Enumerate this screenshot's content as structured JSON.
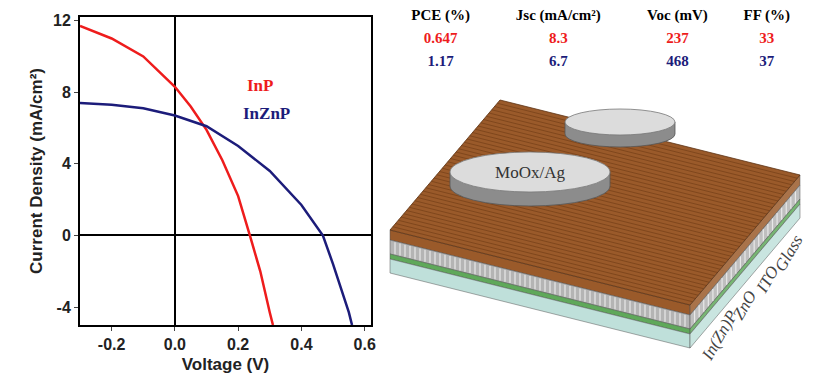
{
  "chart_data": {
    "type": "line",
    "xlabel": "Voltage (V)",
    "ylabel": "Current Density (mA/cm²)",
    "xlim": [
      -0.3,
      0.62
    ],
    "ylim": [
      -5,
      12.2
    ],
    "xticks": [
      -0.2,
      {
        "value": 0,
        "label": "0.0"
      },
      0.2,
      0.4,
      0.6
    ],
    "yticks": [
      -4,
      0,
      4,
      8,
      12
    ],
    "grid": false,
    "series": [
      {
        "name": "InP",
        "color": "#ee1c1c",
        "x": [
          -0.3,
          -0.2,
          -0.1,
          0,
          0.05,
          0.1,
          0.15,
          0.2,
          0.237,
          0.27,
          0.3,
          0.31
        ],
        "values": [
          11.7,
          11.0,
          10.0,
          8.3,
          7.2,
          5.9,
          4.2,
          2.2,
          0,
          -2.0,
          -4.3,
          -5.0
        ]
      },
      {
        "name": "InZnP",
        "color": "#1c1c7a",
        "x": [
          -0.3,
          -0.2,
          -0.1,
          0,
          0.1,
          0.2,
          0.3,
          0.4,
          0.468,
          0.5,
          0.55,
          0.56
        ],
        "values": [
          7.4,
          7.3,
          7.1,
          6.7,
          6.1,
          5.0,
          3.6,
          1.7,
          0,
          -1.6,
          -4.3,
          -5.0
        ]
      }
    ]
  },
  "table": {
    "columns": [
      "PCE (%)",
      "Jsc (mA/cm²)",
      "Voc (mV)",
      "FF (%)"
    ],
    "rows": [
      {
        "color": "#ee1c1c",
        "cells": [
          "0.647",
          "8.3",
          "237",
          "33"
        ]
      },
      {
        "color": "#1c1c7a",
        "cells": [
          "1.17",
          "6.7",
          "468",
          "37"
        ]
      }
    ]
  },
  "diagram": {
    "electrode": "MoOx/Ag",
    "layers": [
      {
        "label": "In(Zn)P",
        "color": "#9a5a2a"
      },
      {
        "label": "ZnO",
        "color": "#b4b4b4"
      },
      {
        "label": "ITO",
        "color": "#5fa85a"
      },
      {
        "label": "Glass",
        "color": "#bfe0da"
      }
    ]
  }
}
